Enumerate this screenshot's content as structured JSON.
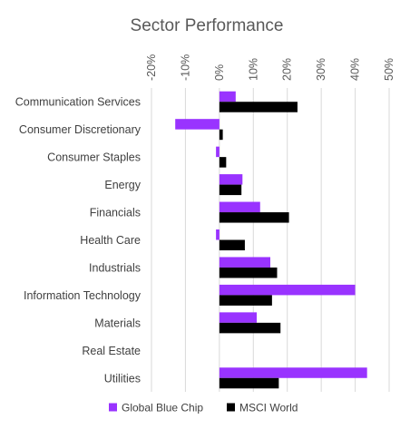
{
  "chart_data": {
    "type": "bar",
    "orientation": "horizontal",
    "title": "Sector Performance",
    "categories": [
      "Communication Services",
      "Consumer Discretionary",
      "Consumer Staples",
      "Energy",
      "Financials",
      "Health Care",
      "Industrials",
      "Information Technology",
      "Materials",
      "Real Estate",
      "Utilities"
    ],
    "series": [
      {
        "name": "Global Blue Chip",
        "color": "#9933ff",
        "values": [
          4.8,
          -13.0,
          -1.0,
          6.8,
          12.0,
          -1.0,
          15.0,
          40.0,
          11.0,
          null,
          43.5
        ]
      },
      {
        "name": "MSCI World",
        "color": "#000000",
        "values": [
          23.0,
          1.0,
          2.0,
          6.5,
          20.5,
          7.5,
          17.0,
          15.5,
          18.0,
          null,
          17.5
        ]
      }
    ],
    "xlim": [
      -20,
      50
    ],
    "xticks": [
      -20,
      -10,
      0,
      10,
      20,
      30,
      40,
      50
    ],
    "xtick_labels": [
      "-20%",
      "-10%",
      "0%",
      "10%",
      "20%",
      "30%",
      "40%",
      "50%"
    ],
    "tick_label_rotation": "vertical, placed at top",
    "grid": "vertical gridlines",
    "legend_position": "bottom-center"
  }
}
